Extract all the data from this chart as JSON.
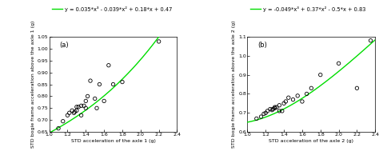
{
  "subplot_a": {
    "scatter_x": [
      1.1,
      1.15,
      1.2,
      1.22,
      1.25,
      1.27,
      1.28,
      1.3,
      1.3,
      1.32,
      1.35,
      1.35,
      1.38,
      1.4,
      1.4,
      1.42,
      1.45,
      1.5,
      1.52,
      1.55,
      1.6,
      1.65,
      1.7,
      1.8,
      2.2
    ],
    "scatter_y": [
      0.665,
      0.695,
      0.72,
      0.73,
      0.74,
      0.73,
      0.735,
      0.74,
      0.755,
      0.755,
      0.76,
      0.72,
      0.76,
      0.75,
      0.78,
      0.8,
      0.865,
      0.79,
      0.75,
      0.85,
      0.78,
      0.93,
      0.85,
      0.86,
      1.03
    ],
    "poly_coeffs": [
      0.035,
      -0.039,
      0.18,
      0.47
    ],
    "equation": "y = 0.035*x³ - 0.039*x² + 0.18*x + 0.47",
    "xlabel": "STD acceleration of the axle 1 (g)",
    "ylabel": "STD bogie frame acceleration above the axle 1 (g)",
    "label": "(a)",
    "xlim": [
      1.0,
      2.4
    ],
    "ylim": [
      0.65,
      1.05
    ],
    "yticks": [
      0.65,
      0.7,
      0.75,
      0.8,
      0.85,
      0.9,
      0.95,
      1.0,
      1.05
    ]
  },
  "subplot_b": {
    "scatter_x": [
      1.1,
      1.15,
      1.18,
      1.2,
      1.22,
      1.25,
      1.27,
      1.28,
      1.3,
      1.3,
      1.32,
      1.35,
      1.35,
      1.38,
      1.4,
      1.42,
      1.45,
      1.5,
      1.55,
      1.6,
      1.65,
      1.7,
      1.8,
      2.0,
      2.2,
      2.35
    ],
    "scatter_y": [
      0.67,
      0.68,
      0.695,
      0.7,
      0.71,
      0.72,
      0.715,
      0.72,
      0.73,
      0.725,
      0.73,
      0.74,
      0.71,
      0.71,
      0.75,
      0.76,
      0.78,
      0.77,
      0.79,
      0.76,
      0.8,
      0.83,
      0.9,
      0.96,
      0.83,
      1.08
    ],
    "poly_coeffs": [
      -0.049,
      0.37,
      -0.5,
      0.83
    ],
    "equation": "y = -0.049*x³ + 0.37*x² - 0.5*x + 0.83",
    "xlabel": "STD acceleration of the axle 2 (g)",
    "ylabel": "STD bogie frame acceleration above the axle 2 (g)",
    "label": "(b)",
    "xlim": [
      1.0,
      2.4
    ],
    "ylim": [
      0.6,
      1.1
    ],
    "yticks": [
      0.6,
      0.7,
      0.8,
      0.9,
      1.0,
      1.1
    ]
  },
  "line_color": "#00dd00",
  "marker_color": "black",
  "marker_facecolor": "none",
  "fontsize_label": 4.5,
  "fontsize_tick": 4.5,
  "fontsize_eq": 4.8,
  "fontsize_panel": 6,
  "xticks": [
    1.0,
    1.2,
    1.4,
    1.6,
    1.8,
    2.0,
    2.2,
    2.4
  ]
}
